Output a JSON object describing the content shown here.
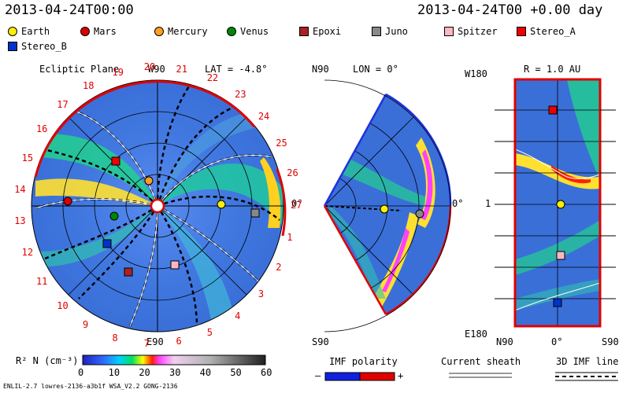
{
  "header": {
    "left_time": "2013-04-24T00:00",
    "right_time": "2013-04-24T00 +0.00 day"
  },
  "legend": [
    {
      "name": "Earth",
      "shape": "circle",
      "color": "#ffee00"
    },
    {
      "name": "Mars",
      "shape": "circle",
      "color": "#dd0000"
    },
    {
      "name": "Mercury",
      "shape": "circle",
      "color": "#ffa020"
    },
    {
      "name": "Venus",
      "shape": "circle",
      "color": "#008800"
    },
    {
      "name": "Epoxi",
      "shape": "square",
      "color": "#aa2222"
    },
    {
      "name": "Juno",
      "shape": "square",
      "color": "#888888"
    },
    {
      "name": "Spitzer",
      "shape": "square",
      "color": "#ffb6c1"
    },
    {
      "name": "Stereo_A",
      "shape": "square",
      "color": "#ee0000"
    },
    {
      "name": "Stereo_B",
      "shape": "square",
      "color": "#0033cc"
    }
  ],
  "panel1": {
    "title": "Ecliptic Plane",
    "lat": "LAT = -4.8°",
    "top": "W90",
    "bottom": "E90",
    "right": "0°",
    "rim_numbers": [
      "1",
      "2",
      "3",
      "4",
      "5",
      "6",
      "7",
      "8",
      "9",
      "10",
      "11",
      "12",
      "13",
      "14",
      "15",
      "16",
      "17",
      "18",
      "19",
      "20",
      "21",
      "22",
      "23",
      "24",
      "25",
      "26",
      "27"
    ]
  },
  "panel2": {
    "lon": "LON = 0°",
    "top": "N90",
    "bottom": "S90",
    "right": "0°"
  },
  "panel3": {
    "title": "R = 1.0 AU",
    "w180": "W180",
    "e180": "E180",
    "one": "1",
    "n90": "N90",
    "zero": "0°",
    "s90": "S90"
  },
  "colorbar": {
    "label": "R² N (cm⁻³)",
    "ticks": [
      "0",
      "10",
      "20",
      "30",
      "40",
      "50",
      "60"
    ]
  },
  "footer": {
    "imf": "IMF polarity",
    "minus": "–",
    "plus": "+",
    "sheath": "Current sheath",
    "imf3d": "3D IMF line",
    "credit": "ENLIL-2.7 lowres-2136-a3b1f WSA_V2.2 GONG-2136"
  }
}
